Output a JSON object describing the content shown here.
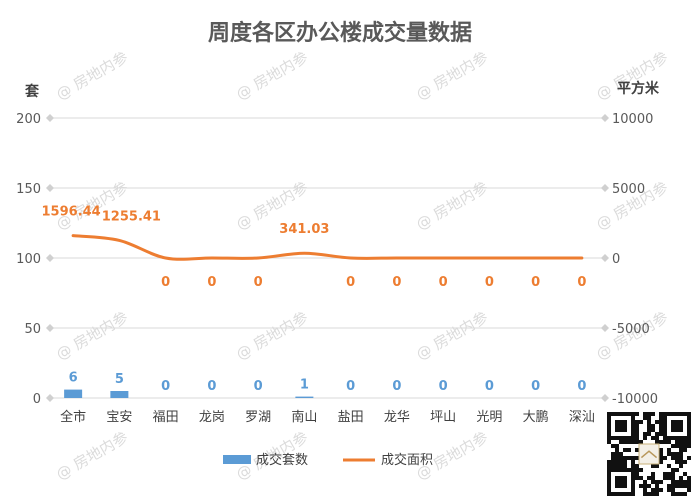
{
  "chart_data": {
    "type": "bar+line",
    "title": "周度各区办公楼成交量数据",
    "left_axis_unit": "套",
    "right_axis_unit": "平方米",
    "categories": [
      "全市",
      "宝安",
      "福田",
      "龙岗",
      "罗湖",
      "南山",
      "盐田",
      "龙华",
      "坪山",
      "光明",
      "大鹏",
      "深汕"
    ],
    "bar_series": {
      "name": "成交套数",
      "color": "#5b9bd5",
      "values": [
        6,
        5,
        0,
        0,
        0,
        1,
        0,
        0,
        0,
        0,
        0,
        0
      ]
    },
    "line_series": {
      "name": "成交面积",
      "color": "#ed7d31",
      "values": [
        1596.44,
        1255.41,
        0,
        0,
        0,
        341.03,
        0,
        0,
        0,
        0,
        0,
        0
      ],
      "labels": [
        "1596.44",
        "1255.41",
        "0",
        "0",
        "0",
        "341.03",
        "0",
        "0",
        "0",
        "0",
        "0",
        "0"
      ]
    },
    "left_axis": {
      "ylim": [
        0,
        200
      ],
      "ticks": [
        "0",
        "50",
        "100",
        "150",
        "200"
      ]
    },
    "right_axis": {
      "ylim": [
        -10000,
        10000
      ],
      "ticks": [
        "-10000",
        "-5000",
        "0",
        "5000",
        "10000"
      ]
    },
    "grid": true,
    "legend_position": "bottom"
  },
  "watermark": "@ 房地内参",
  "qr": {
    "icon": "qr-code-icon"
  }
}
